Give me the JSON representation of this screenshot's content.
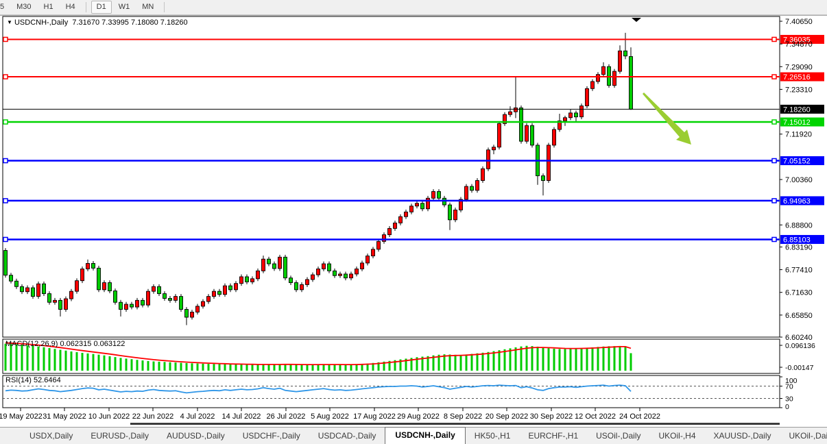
{
  "toolbar": {
    "timeframes": [
      {
        "label": "5",
        "active": false,
        "clipped": true
      },
      {
        "label": "M30",
        "active": false,
        "clipped": false
      },
      {
        "label": "H1",
        "active": false,
        "clipped": false
      },
      {
        "label": "H4",
        "active": false,
        "clipped": false
      },
      {
        "label": "D1",
        "active": true,
        "clipped": false
      },
      {
        "label": "W1",
        "active": false,
        "clipped": false
      },
      {
        "label": "MN",
        "active": false,
        "clipped": false
      }
    ]
  },
  "title_bar": {
    "dropdown_icon": "▼",
    "symbol_label": "USDCNH-,Daily",
    "ohlc_text": "7.31670 7.33995 7.18080 7.18260"
  },
  "chart_data": {
    "type": "candlestick",
    "symbol": "USDCNH-",
    "timeframe": "Daily",
    "title": "USDCNH-,Daily",
    "last_ohlc": {
      "open": 7.3167,
      "high": 7.33995,
      "low": 7.1808,
      "close": 7.1826
    },
    "y_axis": {
      "range": [
        6.6024,
        7.4065
      ],
      "ticks": [
        "7.40650",
        "7.34870",
        "7.29090",
        "7.23310",
        "7.11920",
        "7.00360",
        "6.88800",
        "6.83190",
        "6.77410",
        "6.71630",
        "6.65850",
        "6.60240"
      ]
    },
    "x_axis": {
      "labels": [
        "19 May 2022",
        "31 May 2022",
        "10 Jun 2022",
        "22 Jun 2022",
        "4 Jul 2022",
        "14 Jul 2022",
        "26 Jul 2022",
        "5 Aug 2022",
        "17 Aug 2022",
        "29 Aug 2022",
        "8 Sep 2022",
        "20 Sep 2022",
        "30 Sep 2022",
        "12 Oct 2022",
        "24 Oct 2022"
      ]
    },
    "price_lines": [
      {
        "label": "7.36035",
        "value": 7.36035,
        "color": "#FF0000",
        "width": 2,
        "handles": true,
        "role": "resistance"
      },
      {
        "label": "7.26516",
        "value": 7.26516,
        "color": "#FF0000",
        "width": 2,
        "handles": true,
        "role": "resistance"
      },
      {
        "label": "7.18260",
        "value": 7.1826,
        "color": "#000000",
        "width": 1,
        "handles": false,
        "role": "last-price"
      },
      {
        "label": "7.15012",
        "value": 7.15012,
        "color": "#00D400",
        "width": 2.5,
        "handles": true,
        "role": "support"
      },
      {
        "label": "7.05152",
        "value": 7.05152,
        "color": "#0000FF",
        "width": 2.5,
        "handles": true,
        "role": "support"
      },
      {
        "label": "6.94963",
        "value": 6.94963,
        "color": "#0000FF",
        "width": 2.5,
        "handles": true,
        "role": "support"
      },
      {
        "label": "6.85103",
        "value": 6.85103,
        "color": "#0000FF",
        "width": 2.5,
        "handles": true,
        "role": "support"
      }
    ],
    "colors": {
      "up_candle": "#FF0000",
      "down_candle": "#00CC00",
      "wick": "#000000",
      "background": "#FFFFFF",
      "macd_histogram": "#00CC00",
      "macd_signal": "#FF0000",
      "rsi_line": "#2E96E8",
      "annotation_arrow": "#9ACD32"
    },
    "candles": [
      [
        6.823,
        6.829,
        6.754,
        6.76
      ],
      [
        6.76,
        6.766,
        6.739,
        6.745
      ],
      [
        6.745,
        6.751,
        6.725,
        6.731
      ],
      [
        6.731,
        6.737,
        6.712,
        6.718
      ],
      [
        6.718,
        6.734,
        6.712,
        6.728
      ],
      [
        6.728,
        6.734,
        6.7,
        6.706
      ],
      [
        6.706,
        6.744,
        6.7,
        6.738
      ],
      [
        6.738,
        6.744,
        6.707,
        6.713
      ],
      [
        6.713,
        6.719,
        6.685,
        6.691
      ],
      [
        6.691,
        6.702,
        6.685,
        6.696
      ],
      [
        6.696,
        6.702,
        6.655,
        6.673
      ],
      [
        6.673,
        6.706,
        6.667,
        6.7
      ],
      [
        6.7,
        6.725,
        6.694,
        6.719
      ],
      [
        6.719,
        6.752,
        6.713,
        6.746
      ],
      [
        6.746,
        6.782,
        6.74,
        6.776
      ],
      [
        6.776,
        6.8,
        6.77,
        6.79
      ],
      [
        6.79,
        6.796,
        6.772,
        6.778
      ],
      [
        6.778,
        6.784,
        6.717,
        6.723
      ],
      [
        6.723,
        6.747,
        6.717,
        6.741
      ],
      [
        6.741,
        6.747,
        6.714,
        6.72
      ],
      [
        6.72,
        6.726,
        6.685,
        6.691
      ],
      [
        6.691,
        6.697,
        6.655,
        6.673
      ],
      [
        6.673,
        6.692,
        6.667,
        6.686
      ],
      [
        6.686,
        6.692,
        6.673,
        6.679
      ],
      [
        6.679,
        6.702,
        6.673,
        6.696
      ],
      [
        6.696,
        6.702,
        6.678,
        6.684
      ],
      [
        6.684,
        6.725,
        6.678,
        6.719
      ],
      [
        6.719,
        6.737,
        6.713,
        6.731
      ],
      [
        6.731,
        6.737,
        6.707,
        6.713
      ],
      [
        6.713,
        6.719,
        6.695,
        6.701
      ],
      [
        6.701,
        6.707,
        6.69,
        6.696
      ],
      [
        6.696,
        6.712,
        6.69,
        6.706
      ],
      [
        6.706,
        6.712,
        6.667,
        6.673
      ],
      [
        6.673,
        6.679,
        6.633,
        6.653
      ],
      [
        6.653,
        6.672,
        6.647,
        6.666
      ],
      [
        6.666,
        6.687,
        6.66,
        6.681
      ],
      [
        6.681,
        6.699,
        6.675,
        6.693
      ],
      [
        6.693,
        6.712,
        6.687,
        6.706
      ],
      [
        6.706,
        6.725,
        6.7,
        6.719
      ],
      [
        6.719,
        6.725,
        6.705,
        6.711
      ],
      [
        6.711,
        6.739,
        6.705,
        6.733
      ],
      [
        6.733,
        6.739,
        6.717,
        6.723
      ],
      [
        6.723,
        6.745,
        6.717,
        6.739
      ],
      [
        6.739,
        6.762,
        6.733,
        6.756
      ],
      [
        6.756,
        6.762,
        6.737,
        6.743
      ],
      [
        6.743,
        6.757,
        6.737,
        6.751
      ],
      [
        6.751,
        6.777,
        6.745,
        6.771
      ],
      [
        6.771,
        6.81,
        6.765,
        6.801
      ],
      [
        6.801,
        6.807,
        6.783,
        6.789
      ],
      [
        6.789,
        6.795,
        6.771,
        6.777
      ],
      [
        6.777,
        6.812,
        6.771,
        6.806
      ],
      [
        6.806,
        6.812,
        6.747,
        6.753
      ],
      [
        6.753,
        6.759,
        6.735,
        6.741
      ],
      [
        6.741,
        6.747,
        6.717,
        6.723
      ],
      [
        6.723,
        6.742,
        6.717,
        6.736
      ],
      [
        6.736,
        6.755,
        6.73,
        6.749
      ],
      [
        6.749,
        6.767,
        6.743,
        6.761
      ],
      [
        6.761,
        6.782,
        6.755,
        6.776
      ],
      [
        6.776,
        6.795,
        6.77,
        6.789
      ],
      [
        6.789,
        6.795,
        6.765,
        6.771
      ],
      [
        6.771,
        6.777,
        6.753,
        6.759
      ],
      [
        6.759,
        6.769,
        6.753,
        6.763
      ],
      [
        6.763,
        6.769,
        6.747,
        6.753
      ],
      [
        6.753,
        6.769,
        6.747,
        6.763
      ],
      [
        6.763,
        6.782,
        6.757,
        6.776
      ],
      [
        6.776,
        6.797,
        6.77,
        6.791
      ],
      [
        6.791,
        6.815,
        6.785,
        6.809
      ],
      [
        6.809,
        6.832,
        6.803,
        6.826
      ],
      [
        6.826,
        6.852,
        6.82,
        6.846
      ],
      [
        6.846,
        6.869,
        6.84,
        6.863
      ],
      [
        6.863,
        6.885,
        6.857,
        6.879
      ],
      [
        6.879,
        6.899,
        6.873,
        6.893
      ],
      [
        6.893,
        6.915,
        6.887,
        6.909
      ],
      [
        6.909,
        6.927,
        6.903,
        6.921
      ],
      [
        6.921,
        6.942,
        6.915,
        6.936
      ],
      [
        6.936,
        6.949,
        6.93,
        6.943
      ],
      [
        6.943,
        6.949,
        6.923,
        6.929
      ],
      [
        6.929,
        6.962,
        6.923,
        6.956
      ],
      [
        6.956,
        6.979,
        6.95,
        6.973
      ],
      [
        6.973,
        6.979,
        6.95,
        6.956
      ],
      [
        6.956,
        6.962,
        6.933,
        6.939
      ],
      [
        6.939,
        6.945,
        6.875,
        6.901
      ],
      [
        6.901,
        6.932,
        6.895,
        6.926
      ],
      [
        6.926,
        6.959,
        6.92,
        6.953
      ],
      [
        6.953,
        6.992,
        6.947,
        6.986
      ],
      [
        6.986,
        6.992,
        6.97,
        6.976
      ],
      [
        6.976,
        7.007,
        6.97,
        7.001
      ],
      [
        7.001,
        7.037,
        6.995,
        7.031
      ],
      [
        7.031,
        7.085,
        7.025,
        7.079
      ],
      [
        7.079,
        7.092,
        7.068,
        7.086
      ],
      [
        7.086,
        7.152,
        7.08,
        7.146
      ],
      [
        7.146,
        7.175,
        7.14,
        7.169
      ],
      [
        7.169,
        7.19,
        7.163,
        7.176
      ],
      [
        7.176,
        7.266,
        7.16,
        7.186
      ],
      [
        7.186,
        7.192,
        7.095,
        7.101
      ],
      [
        7.101,
        7.147,
        7.095,
        7.141
      ],
      [
        7.141,
        7.147,
        7.085,
        7.091
      ],
      [
        7.091,
        7.097,
        6.99,
        7.013
      ],
      [
        7.013,
        7.019,
        6.963,
        7.001
      ],
      [
        7.001,
        7.097,
        6.995,
        7.091
      ],
      [
        7.091,
        7.137,
        7.085,
        7.131
      ],
      [
        7.131,
        7.171,
        7.125,
        7.153
      ],
      [
        7.153,
        7.166,
        7.14,
        7.161
      ],
      [
        7.161,
        7.182,
        7.155,
        7.173
      ],
      [
        7.173,
        7.179,
        7.15,
        7.163
      ],
      [
        7.163,
        7.197,
        7.157,
        7.191
      ],
      [
        7.191,
        7.241,
        7.185,
        7.235
      ],
      [
        7.235,
        7.259,
        7.229,
        7.253
      ],
      [
        7.253,
        7.277,
        7.247,
        7.271
      ],
      [
        7.271,
        7.302,
        7.265,
        7.291
      ],
      [
        7.291,
        7.297,
        7.237,
        7.243
      ],
      [
        7.243,
        7.285,
        7.237,
        7.279
      ],
      [
        7.279,
        7.345,
        7.273,
        7.331
      ],
      [
        7.331,
        7.377,
        7.31,
        7.318
      ],
      [
        7.3167,
        7.33995,
        7.1808,
        7.1826
      ]
    ],
    "indicators": {
      "macd": {
        "label": "MACD(12,26,9)",
        "readout": [
          "0.062315",
          "0.063122"
        ],
        "axis_labels": [
          "0.096136",
          "-0.00147"
        ],
        "values": [
          0.096,
          0.0955,
          0.094,
          0.0925,
          0.09,
          0.0885,
          0.086,
          0.0835,
          0.0805,
          0.0775,
          0.0745,
          0.0715,
          0.0685,
          0.066,
          0.0635,
          0.0615,
          0.0595,
          0.057,
          0.0545,
          0.0515,
          0.0485,
          0.0455,
          0.043,
          0.041,
          0.0385,
          0.0365,
          0.0345,
          0.033,
          0.032,
          0.031,
          0.03,
          0.029,
          0.028,
          0.027,
          0.0262,
          0.0255,
          0.0248,
          0.0242,
          0.0238,
          0.0234,
          0.023,
          0.0226,
          0.0224,
          0.0222,
          0.022,
          0.0215,
          0.0212,
          0.0218,
          0.0222,
          0.022,
          0.0228,
          0.023,
          0.0222,
          0.0214,
          0.021,
          0.0212,
          0.0215,
          0.022,
          0.0224,
          0.0222,
          0.0218,
          0.0216,
          0.0214,
          0.0216,
          0.0225,
          0.0238,
          0.0255,
          0.0275,
          0.0298,
          0.0322,
          0.0348,
          0.0375,
          0.0402,
          0.0428,
          0.0455,
          0.048,
          0.05,
          0.0518,
          0.0545,
          0.0568,
          0.0582,
          0.0575,
          0.0565,
          0.0562,
          0.0578,
          0.0598,
          0.0618,
          0.064,
          0.0665,
          0.0695,
          0.0728,
          0.0762,
          0.0795,
          0.083,
          0.0862,
          0.0885,
          0.0875,
          0.0855,
          0.0828,
          0.08,
          0.0782,
          0.0772,
          0.077,
          0.0778,
          0.079,
          0.08,
          0.0815,
          0.083,
          0.0845,
          0.086,
          0.087,
          0.0875,
          0.088,
          0.086,
          0.062315
        ]
      },
      "rsi": {
        "label": "RSI(14)",
        "readout": "52.6464",
        "axis_labels": [
          "100",
          "70",
          "30",
          "0"
        ],
        "levels": [
          70,
          30
        ],
        "values": [
          55,
          57,
          56,
          54,
          55,
          58,
          61,
          59,
          56,
          55,
          52,
          54,
          56,
          59,
          62,
          64,
          63,
          58,
          60,
          57,
          54,
          51,
          53,
          52,
          54,
          53,
          57,
          59,
          56,
          55,
          54,
          55,
          51,
          48,
          50,
          52,
          53,
          55,
          56,
          55,
          58,
          56,
          58,
          60,
          58,
          59,
          61,
          65,
          62,
          60,
          63,
          56,
          54,
          52,
          54,
          56,
          58,
          60,
          62,
          59,
          57,
          58,
          56,
          57,
          59,
          61,
          63,
          65,
          67,
          68,
          69,
          69,
          70,
          70,
          71,
          70,
          67,
          69,
          71,
          68,
          65,
          60,
          63,
          66,
          69,
          67,
          69,
          71,
          72,
          71,
          73,
          72,
          71,
          72,
          65,
          68,
          64,
          58,
          56,
          62,
          65,
          67,
          67,
          68,
          66,
          68,
          70,
          71,
          72,
          73,
          70,
          72,
          73,
          71,
          52.6
        ]
      }
    },
    "annotations": [
      {
        "type": "arrow",
        "direction": "down-right",
        "color": "#9ACD32"
      }
    ]
  },
  "tabs": {
    "items": [
      "USDX,Daily",
      "EURUSD-,Daily",
      "AUDUSD-,Daily",
      "USDCHF-,Daily",
      "USDCAD-,Daily",
      "USDCNH-,Daily",
      "HK50-,H1",
      "EURCHF-,H1",
      "USOil-,Daily",
      "UKOil-,H4",
      "XAUUSD-,Daily",
      "UKOil-,Daily"
    ],
    "active": "USDCNH-,Daily",
    "scroll_left_icon": "◄",
    "scroll_right_icon": "►"
  }
}
